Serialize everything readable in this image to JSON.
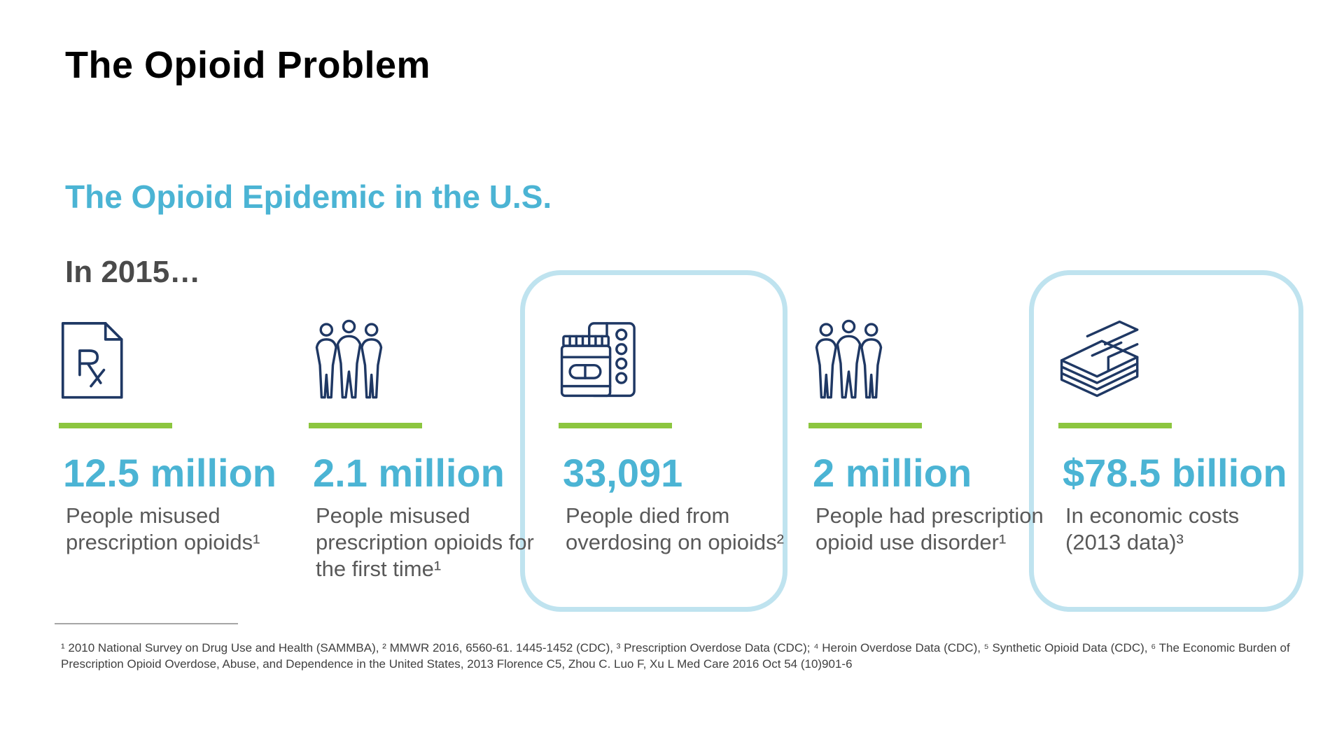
{
  "colors": {
    "accent": "#4bb4d4",
    "green": "#8cc63f",
    "icon": "#1f3864",
    "box_border": "#bfe3ef"
  },
  "slide": {
    "title": "The Opioid Problem",
    "subtitle": "The Opioid Epidemic in the U.S.",
    "year": "In 2015…"
  },
  "stats": [
    {
      "icon": "prescription-document-icon",
      "value": "12.5 million",
      "desc": "People misused prescription opioids¹",
      "highlighted": false
    },
    {
      "icon": "people-group-icon",
      "value": "2.1 million",
      "desc": "People misused prescription opioids for the first time¹",
      "highlighted": false
    },
    {
      "icon": "pill-bottle-icon",
      "value": "33,091",
      "desc": "People died from overdosing on opioids²",
      "highlighted": true
    },
    {
      "icon": "people-group-icon",
      "value": "2 million",
      "desc": "People had prescription opioid use disorder¹",
      "highlighted": false
    },
    {
      "icon": "money-stack-icon",
      "value": "$78.5 billion",
      "desc": "In economic costs (2013 data)³",
      "highlighted": true
    }
  ],
  "footnote": "¹ 2010 National Survey on Drug Use and Health (SAMMBA), ² MMWR 2016, 6560-61. 1445-1452 (CDC), ³ Prescription Overdose Data (CDC); ⁴ Heroin Overdose Data (CDC), ⁵ Synthetic Opioid Data (CDC), ⁶ The Economic Burden of Prescription Opioid Overdose, Abuse, and Dependence in the United States, 2013 Florence C5, Zhou C. Luo F, Xu L Med Care 2016 Oct 54 (10)901-6"
}
